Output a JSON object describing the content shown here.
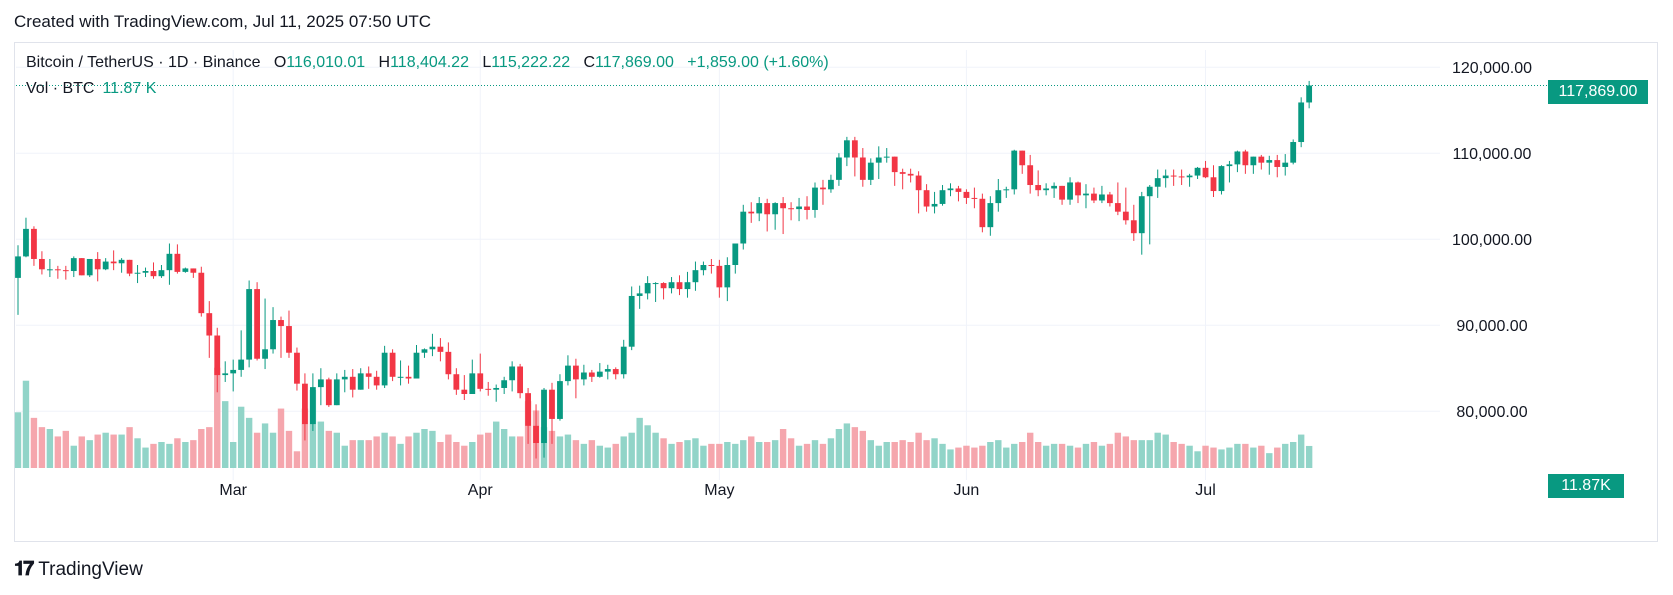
{
  "header": {
    "created": "Created with TradingView.com, Jul 11, 2025 07:50 UTC"
  },
  "legend": {
    "symbol": "Bitcoin / TetherUS · 1D · Binance",
    "open_label": "O",
    "open": "116,010.01",
    "high_label": "H",
    "high": "118,404.22",
    "low_label": "L",
    "low": "115,222.22",
    "close_label": "C",
    "close": "117,869.00",
    "change": "+1,859.00 (+1.60%)",
    "vol_label": "Vol · BTC",
    "vol_value": "11.87 K"
  },
  "tags": {
    "last_price": "117,869.00",
    "last_volume": "11.87K"
  },
  "footer": {
    "brand": "TradingView"
  },
  "colors": {
    "up": "#089981",
    "down": "#f23645",
    "up_vol": "#91d4c8",
    "down_vol": "#f5a6ad",
    "grid": "#f0f3fa"
  },
  "chart_data": {
    "type": "candlestick",
    "y_ticks": [
      "120,000.00",
      "110,000.00",
      "100,000.00",
      "90,000.00",
      "80,000.00"
    ],
    "y_tick_values": [
      120000,
      110000,
      100000,
      90000,
      80000
    ],
    "x_ticks": [
      "Mar",
      "Apr",
      "May",
      "Jun",
      "Jul"
    ],
    "x_tick_dates": [
      "2025-03-01",
      "2025-04-01",
      "2025-05-01",
      "2025-06-01",
      "2025-07-01"
    ],
    "ylim": [
      72000,
      122000
    ],
    "first_date": "2025-02-02",
    "last_date": "2025-07-10",
    "closes": [
      98000,
      101200,
      97700,
      96500,
      96500,
      96400,
      96300,
      97800,
      95800,
      97700,
      96500,
      97400,
      97200,
      97600,
      96000,
      96100,
      96300,
      95700,
      96400,
      98300,
      96200,
      96600,
      96100,
      91400,
      88800,
      84200,
      84400,
      84800,
      86000,
      94200,
      86100,
      87200,
      90600,
      89900,
      86800,
      83200,
      78500,
      82800,
      83700,
      80700,
      83700,
      84000,
      82500,
      84400,
      84000,
      83000,
      86800,
      84000,
      84000,
      83800,
      86800,
      87200,
      87500,
      86900,
      84300,
      82500,
      82000,
      84400,
      82600,
      82500,
      82700,
      83600,
      85200,
      82100,
      78300,
      76300,
      82500,
      79100,
      83500,
      85300,
      83700,
      84500,
      84000,
      84600,
      84900,
      84300,
      87500,
      93400,
      93700,
      94900,
      94900,
      94300,
      95000,
      94200,
      95000,
      96400,
      97000,
      96900,
      94400,
      97000,
      99500,
      103200,
      103000,
      104200,
      102900,
      104200,
      103600,
      103500,
      103800,
      103400,
      106000,
      105800,
      106900,
      109500,
      111500,
      109500,
      106900,
      108900,
      109500,
      109600,
      107800,
      107600,
      107400,
      105700,
      103800,
      104100,
      105700,
      105900,
      105500,
      104800,
      104700,
      101400,
      104200,
      105700,
      105800,
      110300,
      108600,
      106300,
      105700,
      105900,
      106200,
      104600,
      106600,
      105100,
      105300,
      104500,
      105200,
      104200,
      103200,
      102200,
      100700,
      105000,
      106100,
      107100,
      107400,
      107300,
      107200,
      107400,
      108300,
      107200,
      105600,
      108500,
      108700,
      110200,
      108600,
      109600,
      108900,
      109200,
      108400,
      108900,
      111300,
      115900,
      117869
    ],
    "high_values": [
      99300,
      102500,
      101500,
      98600,
      97700,
      96900,
      96900,
      98000,
      97800,
      97700,
      98500,
      97800,
      98700,
      97800,
      97200,
      97000,
      96700,
      97300,
      97000,
      99500,
      99400,
      96700,
      96500,
      96800,
      92800,
      89700,
      85800,
      86000,
      89400,
      95200,
      95000,
      93100,
      92100,
      91000,
      91700,
      87400,
      84400,
      84400,
      85000,
      83900,
      84400,
      84800,
      84900,
      85000,
      85200,
      84700,
      87600,
      87200,
      85900,
      85300,
      87700,
      87300,
      89000,
      88500,
      88000,
      85000,
      84200,
      86000,
      86700,
      83400,
      83100,
      84000,
      85800,
      85500,
      82700,
      80800,
      82700,
      83300,
      84300,
      86500,
      86100,
      85400,
      84800,
      85600,
      85400,
      85100,
      88300,
      94500,
      94600,
      95700,
      95000,
      95000,
      95600,
      95800,
      96200,
      97400,
      97400,
      97700,
      97600,
      97900,
      99500,
      104000,
      104300,
      104900,
      104700,
      104300,
      104900,
      104300,
      104800,
      105000,
      106600,
      106900,
      107500,
      110000,
      111900,
      111900,
      110600,
      109400,
      110800,
      110600,
      109500,
      108200,
      108200,
      107900,
      106400,
      105500,
      106300,
      106500,
      106200,
      105800,
      106000,
      105300,
      105000,
      107000,
      106100,
      110400,
      110300,
      109800,
      108000,
      106500,
      106600,
      106200,
      107200,
      106700,
      106400,
      106000,
      106200,
      105500,
      106600,
      106000,
      104000,
      105500,
      106300,
      108100,
      108100,
      108100,
      108100,
      107600,
      108400,
      109100,
      108600,
      108600,
      109100,
      110300,
      110400,
      109600,
      109800,
      109700,
      109800,
      109900,
      111600,
      116500,
      118404
    ],
    "low_values": [
      91200,
      97900,
      96900,
      95900,
      95600,
      95400,
      95300,
      95600,
      95800,
      95600,
      95100,
      96400,
      96400,
      96100,
      95700,
      94900,
      95600,
      95400,
      95500,
      94700,
      96000,
      96100,
      95500,
      91000,
      86200,
      82200,
      83400,
      82300,
      84000,
      85100,
      85900,
      84900,
      86700,
      86200,
      86200,
      82400,
      76600,
      77700,
      80700,
      80500,
      80700,
      82200,
      81600,
      82500,
      82600,
      82500,
      82700,
      83500,
      83000,
      83200,
      83800,
      86200,
      86400,
      85800,
      83700,
      81900,
      81300,
      82100,
      82300,
      81800,
      81100,
      82000,
      82300,
      81500,
      76200,
      74500,
      74600,
      76200,
      78900,
      83000,
      81500,
      83000,
      83400,
      83900,
      83700,
      83700,
      83800,
      87100,
      91900,
      93000,
      92700,
      93000,
      93700,
      93500,
      93200,
      94000,
      95800,
      96000,
      93200,
      92800,
      96000,
      98800,
      101900,
      102100,
      100900,
      101100,
      100600,
      102200,
      102100,
      102300,
      102500,
      104000,
      105400,
      106200,
      108500,
      107300,
      106100,
      106300,
      107000,
      108900,
      106200,
      105800,
      106600,
      103000,
      103200,
      103000,
      103900,
      105000,
      104400,
      104100,
      103600,
      100800,
      100400,
      103200,
      104800,
      105200,
      107600,
      105300,
      105000,
      105100,
      104800,
      104000,
      104000,
      104200,
      103600,
      104200,
      104200,
      103800,
      102800,
      101700,
      99800,
      98200,
      99400,
      104800,
      106000,
      106200,
      106300,
      106100,
      107000,
      107100,
      104900,
      105200,
      106600,
      107800,
      107600,
      107600,
      108100,
      107500,
      107200,
      107400,
      108700,
      110700,
      115222
    ],
    "volumes": [
      30,
      47,
      27,
      22,
      21,
      17,
      20,
      12,
      17,
      15,
      18,
      19,
      18,
      18,
      22,
      16,
      11,
      13,
      14,
      13,
      16,
      14,
      15,
      21,
      22,
      54,
      36,
      14,
      33,
      27,
      19,
      24,
      19,
      32,
      20,
      9,
      32,
      42,
      25,
      20,
      19,
      12,
      15,
      15,
      15,
      17,
      19,
      17,
      13,
      17,
      19,
      21,
      20,
      14,
      18,
      14,
      12,
      14,
      18,
      19,
      25,
      21,
      17,
      17,
      36,
      31,
      22,
      20,
      17,
      18,
      15,
      13,
      15,
      12,
      11,
      13,
      17,
      19,
      27,
      23,
      19,
      16,
      13,
      14,
      15,
      16,
      12,
      13,
      13,
      14,
      13,
      15,
      17,
      14,
      14,
      15,
      21,
      16,
      12,
      13,
      15,
      13,
      16,
      21,
      24,
      22,
      20,
      15,
      12,
      14,
      14,
      15,
      14,
      19,
      15,
      16,
      13,
      10,
      11,
      12,
      11,
      12,
      14,
      15,
      11,
      13,
      14,
      19,
      14,
      12,
      13,
      13,
      12,
      11,
      13,
      14,
      12,
      13,
      19,
      17,
      15,
      15,
      15,
      19,
      18,
      14,
      13,
      12,
      9,
      12,
      11,
      10,
      11,
      13,
      13,
      11,
      12,
      8,
      11,
      13,
      14,
      18,
      11.87
    ],
    "volume_ylim": [
      0,
      70
    ]
  }
}
